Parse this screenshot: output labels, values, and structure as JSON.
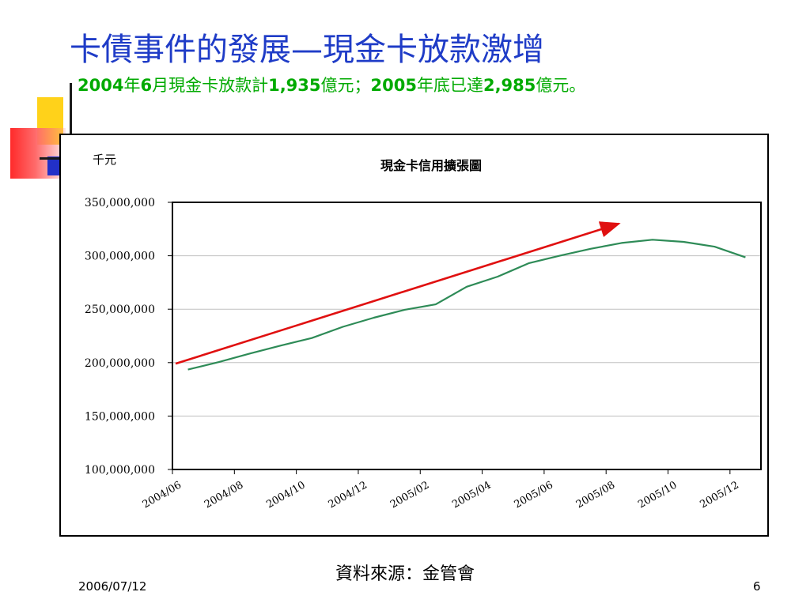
{
  "slide": {
    "title": "卡債事件的發展—現金卡放款激增",
    "subtitle": {
      "y1": "2004",
      "t1": "年",
      "m1": "6",
      "t2": "月現金卡放款計",
      "v1": "1,935",
      "t3": "億元；",
      "y2": "2005",
      "t4": "年底已達",
      "v2": "2,985",
      "t5": "億元。"
    },
    "source": "資料來源：金管會",
    "date": "2006/07/12",
    "page_number": "6"
  },
  "colors": {
    "title": "#1f3cc7",
    "subtitle": "#00aa00",
    "series_line": "#2e8b57",
    "trend_arrow": "#e01010",
    "gridline": "#c0c0c0"
  },
  "chart_data": {
    "type": "line",
    "title": "現金卡信用擴張圖",
    "ylabel": "千元",
    "xlabel": "",
    "ylim": [
      100000000,
      350000000
    ],
    "yticks": [
      100000000,
      150000000,
      200000000,
      250000000,
      300000000,
      350000000
    ],
    "ytick_labels": [
      "100,000,000",
      "150,000,000",
      "200,000,000",
      "250,000,000",
      "300,000,000",
      "350,000,000"
    ],
    "categories": [
      "2004/06",
      "2004/07",
      "2004/08",
      "2004/09",
      "2004/10",
      "2004/11",
      "2004/12",
      "2005/01",
      "2005/02",
      "2005/03",
      "2005/04",
      "2005/05",
      "2005/06",
      "2005/07",
      "2005/08",
      "2005/09",
      "2005/10",
      "2005/11",
      "2005/12"
    ],
    "xtick_labels": [
      "2004/06",
      "2004/08",
      "2004/10",
      "2004/12",
      "2005/02",
      "2005/04",
      "2005/06",
      "2005/08",
      "2005/10",
      "2005/12"
    ],
    "grid": true,
    "series": [
      {
        "values": [
          193500000,
          200500000,
          208500000,
          216000000,
          223000000,
          233500000,
          242000000,
          249500000,
          254500000,
          271000000,
          280500000,
          293000000,
          300000000,
          306500000,
          312000000,
          315000000,
          313000000,
          308500000,
          298500000
        ]
      }
    ],
    "annotations": [
      {
        "type": "trend-arrow",
        "from": [
          "2004/06",
          199000000
        ],
        "to": [
          "2005/08",
          330000000
        ]
      }
    ]
  }
}
